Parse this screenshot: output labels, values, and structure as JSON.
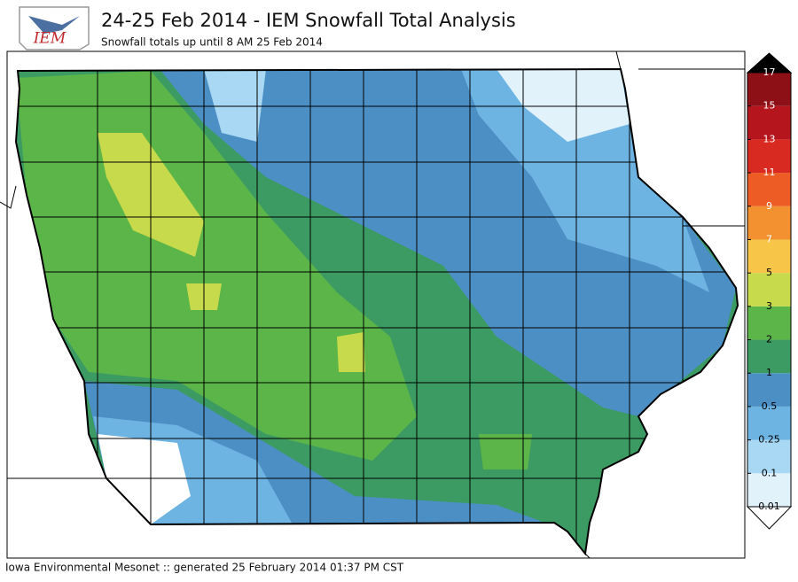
{
  "header": {
    "logo": "IEM",
    "title": "24-25 Feb 2014 - IEM Snowfall Total Analysis",
    "subtitle": "Snowfall totals up until 8 AM 25 Feb 2014"
  },
  "colorbar": {
    "ticks": [
      0.01,
      0.1,
      0.25,
      0.5,
      1,
      2,
      3,
      5,
      7,
      9,
      11,
      13,
      15,
      17
    ],
    "bin_colors": [
      "#e1f2fb",
      "#a8d8f3",
      "#6db4e2",
      "#4b8fc4",
      "#3c9b63",
      "#5cb548",
      "#c7da4b",
      "#f7c547",
      "#f39030",
      "#ee5c25",
      "#d82a20",
      "#b5161d",
      "#8c1016"
    ],
    "under_color": "#ffffff",
    "over_color": "#000000"
  },
  "footer": "Iowa Environmental Mesonet :: generated 25 February 2014 01:37 PM CST"
}
